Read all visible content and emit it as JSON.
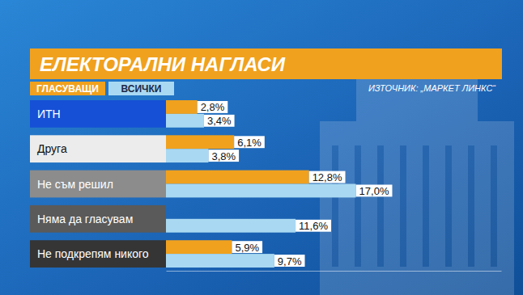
{
  "chart_data": {
    "type": "bar",
    "orientation": "horizontal",
    "title": "ЕЛЕКТОРАЛНИ НАГЛАСИ",
    "annotations": [
      "ИЗТОЧНИК: „МАРКЕТ ЛИНКС“"
    ],
    "categories": [
      "ИТН",
      "Друга",
      "Не съм решил",
      "Няма да гласувам",
      "Не подкрепям никого"
    ],
    "series": [
      {
        "name": "ГЛАСУВАЩИ",
        "color": "#f0a11e",
        "values": [
          2.8,
          6.1,
          12.8,
          null,
          5.9
        ],
        "value_labels": [
          "2,8%",
          "6,1%",
          "12,8%",
          null,
          "5,9%"
        ]
      },
      {
        "name": "ВСИЧКИ",
        "color": "#a9d9f2",
        "values": [
          3.4,
          3.8,
          17.0,
          11.6,
          9.7
        ],
        "value_labels": [
          "3,4%",
          "3,8%",
          "17,0%",
          "11,6%",
          "9,7%"
        ]
      }
    ],
    "xlim": [
      0,
      30
    ],
    "data_labels": true,
    "tick_labels": false,
    "grid": false,
    "legend": "top-left"
  }
}
